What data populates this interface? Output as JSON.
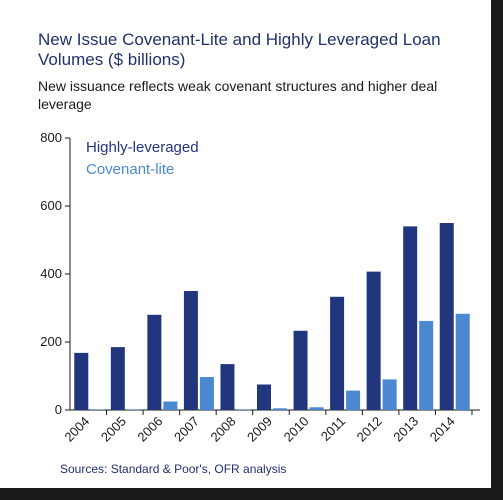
{
  "title": "New Issue Covenant-Lite and Highly Leveraged Loan Volumes ($ billions)",
  "subtitle": "New issuance reflects weak covenant structures and higher deal leverage",
  "source": "Sources: Standard & Poor's, OFR analysis",
  "colors": {
    "highly_leveraged": "#22367e",
    "covenant_lite": "#4a88d1",
    "title": "#22306e"
  },
  "chart_data": {
    "type": "bar",
    "categories": [
      "2004",
      "2005",
      "2006",
      "2007",
      "2008",
      "2009",
      "2010",
      "2011",
      "2012",
      "2013",
      "2014"
    ],
    "series": [
      {
        "name": "Highly-leveraged",
        "values": [
          168,
          185,
          280,
          350,
          135,
          75,
          233,
          333,
          407,
          540,
          550
        ]
      },
      {
        "name": "Covenant-lite",
        "values": [
          2,
          2,
          25,
          97,
          2,
          5,
          8,
          57,
          90,
          262,
          283
        ]
      }
    ],
    "title": "New Issue Covenant-Lite and Highly Leveraged Loan Volumes ($ billions)",
    "ylim": [
      0,
      800
    ],
    "yticks": [
      0,
      200,
      400,
      600,
      800
    ],
    "legend_position": "top-left",
    "grid": false
  }
}
